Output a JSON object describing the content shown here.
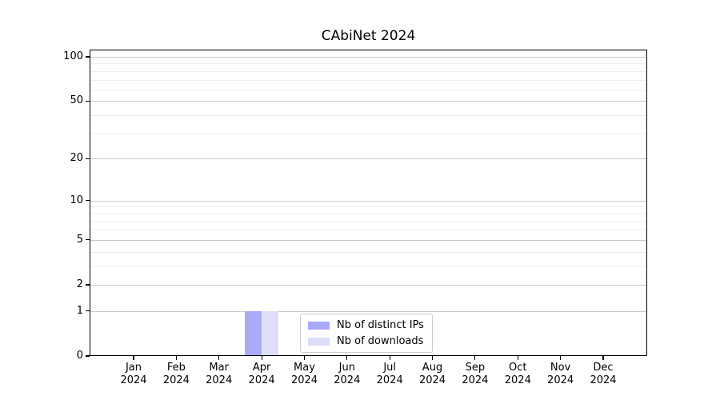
{
  "title": "CAbiNet 2024",
  "colors": {
    "distinct_ips": "#aaaaf8",
    "downloads": "#dedef8",
    "grid_major": "#c9c9c9",
    "grid_minor": "#efefef",
    "axis": "#000000",
    "legend_border": "#cccccc"
  },
  "chart_data": {
    "type": "bar",
    "title": "CAbiNet 2024",
    "xlabel": "",
    "ylabel": "",
    "y_scale": "log1p",
    "ylim": [
      0,
      112
    ],
    "grid": true,
    "legend_position": "lower center",
    "months": [
      "Jan",
      "Feb",
      "Mar",
      "Apr",
      "May",
      "Jun",
      "Jul",
      "Aug",
      "Sep",
      "Oct",
      "Nov",
      "Dec"
    ],
    "year_label": "2024",
    "y_major_ticks": [
      0,
      1,
      2,
      5,
      10,
      20,
      50,
      100
    ],
    "y_minor_ticks": [
      3,
      4,
      6,
      7,
      8,
      9,
      30,
      40,
      60,
      70,
      80,
      90
    ],
    "series": [
      {
        "name": "Nb of distinct IPs",
        "color_key": "distinct_ips",
        "values": [
          0,
          0,
          0,
          1,
          0,
          0,
          0,
          0,
          0,
          0,
          0,
          0
        ]
      },
      {
        "name": "Nb of downloads",
        "color_key": "downloads",
        "values": [
          0,
          0,
          0,
          1,
          0,
          0,
          0,
          0,
          0,
          0,
          0,
          0
        ]
      }
    ]
  }
}
